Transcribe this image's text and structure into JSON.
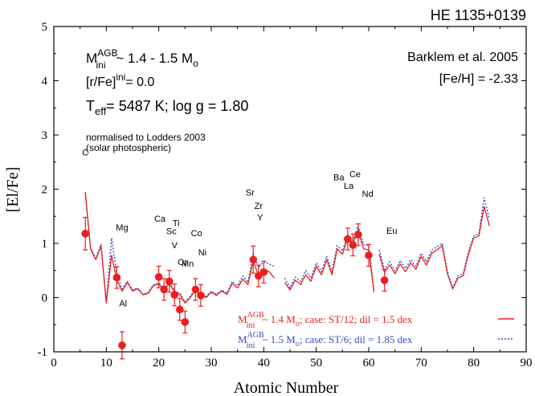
{
  "title": "HE 1135+0139",
  "chart_data": {
    "type": "line",
    "xlabel": "Atomic Number",
    "ylabel": "[El/Fe]",
    "xlim": [
      0,
      90
    ],
    "ylim": [
      -1,
      5
    ],
    "xticks": [
      0,
      10,
      20,
      30,
      40,
      50,
      60,
      70,
      80,
      90
    ],
    "yticks": [
      -1,
      0,
      1,
      2,
      3,
      4,
      5
    ],
    "grid": false,
    "legend_position": "bottom-right",
    "annotations": {
      "mass_prefix": "M",
      "mass_sup": "AGB",
      "mass_sub": "ini",
      "mass_value": " ~ 1.4 - 1.5 M",
      "mass_unit_sub": "o",
      "rfe_prefix": "[r/Fe]",
      "rfe_sup": "ini",
      "rfe_value": "= 0.0",
      "teff_prefix": "T",
      "teff_sub": "eff",
      "teff_value": "= 5487 K; log g = 1.80",
      "norm_line1": "normalised to Lodders 2003",
      "norm_line2": "(solar photospheric)",
      "source_line1": "Barklem et al. 2005",
      "source_line2": "[Fe/H] = -2.33"
    },
    "series": [
      {
        "label_prefix": "M",
        "label_sup": "AGB",
        "label_sub": "ini",
        "label_text": " ~ 1.4 M",
        "label_sub2": "o",
        "label_case": ";  case: ST/12; dil = 1.5 dex",
        "color": "#e8201f",
        "style": "solid",
        "segments": [
          [
            [
              6,
              1.95
            ],
            [
              7,
              0.9
            ],
            [
              8,
              0.7
            ],
            [
              9,
              0.95
            ],
            [
              10,
              -0.1
            ],
            [
              11,
              0.78
            ],
            [
              12,
              0.32
            ],
            [
              13,
              0.12
            ],
            [
              14,
              0.28
            ],
            [
              15,
              0.12
            ],
            [
              16,
              0.16
            ],
            [
              17,
              0.05
            ],
            [
              18,
              0.08
            ],
            [
              19,
              0.22
            ],
            [
              20,
              0.25
            ],
            [
              21,
              0.14
            ],
            [
              22,
              0.26
            ],
            [
              23,
              0.1
            ],
            [
              24,
              0.06
            ],
            [
              25,
              -0.1
            ],
            [
              26,
              0.0
            ],
            [
              27,
              0.14
            ],
            [
              28,
              0.06
            ],
            [
              29,
              0.0
            ],
            [
              30,
              0.1
            ],
            [
              31,
              0.04
            ],
            [
              32,
              0.12
            ],
            [
              33,
              0.06
            ],
            [
              34,
              0.26
            ],
            [
              35,
              0.18
            ],
            [
              36,
              0.34
            ],
            [
              37,
              0.24
            ],
            [
              38,
              0.68
            ],
            [
              39,
              0.4
            ],
            [
              40,
              0.52
            ],
            [
              41,
              0.48
            ],
            [
              42,
              0.36
            ]
          ],
          [
            [
              44,
              0.28
            ],
            [
              45,
              0.14
            ],
            [
              46,
              0.32
            ],
            [
              47,
              0.24
            ],
            [
              48,
              0.42
            ],
            [
              49,
              0.3
            ],
            [
              50,
              0.58
            ],
            [
              51,
              0.42
            ],
            [
              52,
              0.7
            ],
            [
              53,
              0.42
            ],
            [
              54,
              0.9
            ],
            [
              55,
              0.8
            ],
            [
              56,
              1.1
            ],
            [
              57,
              1.0
            ],
            [
              58,
              1.24
            ],
            [
              59,
              0.9
            ],
            [
              60,
              0.88
            ],
            [
              61,
              0.1
            ]
          ],
          [
            [
              62,
              0.8
            ],
            [
              63,
              0.46
            ],
            [
              64,
              0.6
            ],
            [
              65,
              0.44
            ],
            [
              66,
              0.62
            ],
            [
              67,
              0.48
            ],
            [
              68,
              0.64
            ],
            [
              69,
              0.52
            ],
            [
              70,
              0.76
            ],
            [
              71,
              0.6
            ],
            [
              72,
              0.82
            ],
            [
              73,
              0.88
            ],
            [
              74,
              0.96
            ],
            [
              75,
              0.44
            ],
            [
              76,
              0.16
            ],
            [
              77,
              0.36
            ],
            [
              78,
              0.4
            ],
            [
              79,
              0.8
            ],
            [
              80,
              1.1
            ],
            [
              81,
              1.14
            ],
            [
              82,
              1.68
            ],
            [
              83,
              1.32
            ]
          ]
        ]
      },
      {
        "label_prefix": "M",
        "label_sup": "AGB",
        "label_sub": "ini",
        "label_text": " ~ 1.5 M",
        "label_sub2": "o",
        "label_case": ";  case: ST/6; dil = 1.85 dex",
        "color": "#3a4dc2",
        "style": "dotted",
        "segments": [
          [
            [
              6,
              1.9
            ],
            [
              7,
              0.92
            ],
            [
              8,
              0.72
            ],
            [
              9,
              0.98
            ],
            [
              10,
              -0.08
            ],
            [
              11,
              1.1
            ],
            [
              12,
              0.44
            ],
            [
              13,
              0.16
            ],
            [
              14,
              0.3
            ],
            [
              15,
              0.14
            ],
            [
              16,
              0.18
            ],
            [
              17,
              0.06
            ],
            [
              18,
              0.1
            ],
            [
              19,
              0.24
            ],
            [
              20,
              0.27
            ],
            [
              21,
              0.16
            ],
            [
              22,
              0.28
            ],
            [
              23,
              0.12
            ],
            [
              24,
              0.08
            ],
            [
              25,
              -0.08
            ],
            [
              26,
              0.02
            ],
            [
              27,
              0.16
            ],
            [
              28,
              0.08
            ],
            [
              29,
              0.02
            ],
            [
              30,
              0.12
            ],
            [
              31,
              0.06
            ],
            [
              32,
              0.14
            ],
            [
              33,
              0.08
            ],
            [
              34,
              0.3
            ],
            [
              35,
              0.22
            ],
            [
              36,
              0.4
            ],
            [
              37,
              0.28
            ],
            [
              38,
              0.82
            ],
            [
              39,
              0.56
            ],
            [
              40,
              0.66
            ],
            [
              41,
              0.62
            ],
            [
              42,
              0.58
            ]
          ],
          [
            [
              44,
              0.36
            ],
            [
              45,
              0.18
            ],
            [
              46,
              0.38
            ],
            [
              47,
              0.3
            ],
            [
              48,
              0.5
            ],
            [
              49,
              0.36
            ],
            [
              50,
              0.64
            ],
            [
              51,
              0.48
            ],
            [
              52,
              0.76
            ],
            [
              53,
              0.48
            ],
            [
              54,
              0.96
            ],
            [
              55,
              0.86
            ],
            [
              56,
              1.16
            ],
            [
              57,
              1.06
            ],
            [
              58,
              1.32
            ],
            [
              59,
              0.98
            ],
            [
              60,
              0.96
            ],
            [
              61,
              0.14
            ]
          ],
          [
            [
              62,
              0.88
            ],
            [
              63,
              0.52
            ],
            [
              64,
              0.66
            ],
            [
              65,
              0.5
            ],
            [
              66,
              0.68
            ],
            [
              67,
              0.54
            ],
            [
              68,
              0.7
            ],
            [
              69,
              0.58
            ],
            [
              70,
              0.82
            ],
            [
              71,
              0.66
            ],
            [
              72,
              0.88
            ],
            [
              73,
              0.94
            ],
            [
              74,
              1.0
            ],
            [
              75,
              0.48
            ],
            [
              76,
              0.18
            ],
            [
              77,
              0.4
            ],
            [
              78,
              0.44
            ],
            [
              79,
              0.84
            ],
            [
              80,
              1.14
            ],
            [
              81,
              1.18
            ],
            [
              82,
              1.84
            ],
            [
              83,
              1.45
            ]
          ]
        ]
      }
    ],
    "observed": {
      "color": "#e8201f",
      "points": [
        {
          "z": 6,
          "y": 1.18,
          "err": 0.3
        },
        {
          "z": 12,
          "y": 0.37,
          "err": 0.2
        },
        {
          "z": 13,
          "y": -0.88,
          "err": 0.25
        },
        {
          "z": 20,
          "y": 0.38,
          "err": 0.2
        },
        {
          "z": 21,
          "y": 0.15,
          "err": 0.2
        },
        {
          "z": 22,
          "y": 0.3,
          "err": 0.2
        },
        {
          "z": 23,
          "y": 0.05,
          "err": 0.2
        },
        {
          "z": 24,
          "y": -0.22,
          "err": 0.2
        },
        {
          "z": 25,
          "y": -0.45,
          "err": 0.2
        },
        {
          "z": 27,
          "y": 0.15,
          "err": 0.2
        },
        {
          "z": 28,
          "y": 0.04,
          "err": 0.2
        },
        {
          "z": 38,
          "y": 0.7,
          "err": 0.25
        },
        {
          "z": 39,
          "y": 0.4,
          "err": 0.2
        },
        {
          "z": 40,
          "y": 0.47,
          "err": 0.2
        },
        {
          "z": 56,
          "y": 1.08,
          "err": 0.2
        },
        {
          "z": 57,
          "y": 0.97,
          "err": 0.2
        },
        {
          "z": 58,
          "y": 1.16,
          "err": 0.2
        },
        {
          "z": 60,
          "y": 0.78,
          "err": 0.2
        },
        {
          "z": 63,
          "y": 0.32,
          "err": 0.2
        }
      ]
    },
    "element_labels": [
      {
        "text": "C",
        "z": 6
      },
      {
        "text": "Mg",
        "z": 12
      },
      {
        "text": "Al",
        "z": 13
      },
      {
        "text": "Ca",
        "z": 20
      },
      {
        "text": "Ti",
        "z": 22
      },
      {
        "text": "Sc",
        "z": 21
      },
      {
        "text": "V",
        "z": 23
      },
      {
        "text": "Cr",
        "z": 24
      },
      {
        "text": "Mn",
        "z": 25
      },
      {
        "text": "Co",
        "z": 27
      },
      {
        "text": "Ni",
        "z": 28
      },
      {
        "text": "Sr",
        "z": 38
      },
      {
        "text": "Y",
        "z": 39
      },
      {
        "text": "Zr",
        "z": 40
      },
      {
        "text": "Ba",
        "z": 56
      },
      {
        "text": "La",
        "z": 57
      },
      {
        "text": "Ce",
        "z": 58
      },
      {
        "text": "Nd",
        "z": 60
      },
      {
        "text": "Eu",
        "z": 63
      }
    ]
  }
}
